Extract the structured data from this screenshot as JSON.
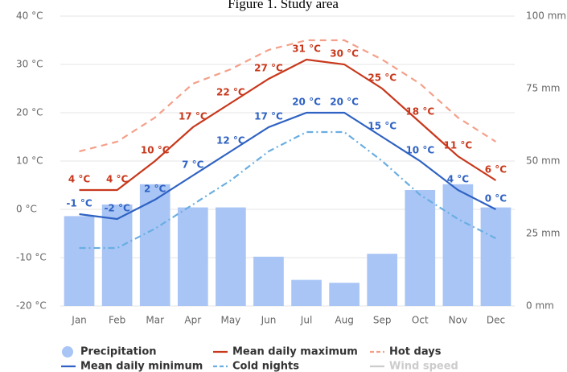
{
  "chart_data": {
    "type": "climate",
    "title": "Figure 1. Study area",
    "categories": [
      "Jan",
      "Feb",
      "Mar",
      "Apr",
      "May",
      "Jun",
      "Jul",
      "Aug",
      "Sep",
      "Oct",
      "Nov",
      "Dec"
    ],
    "ylim": [
      -20,
      40
    ],
    "yticks": [
      {
        "value": -20,
        "label": "-20 °C"
      },
      {
        "value": -10,
        "label": "-10 °C"
      },
      {
        "value": 0,
        "label": "0 °C"
      },
      {
        "value": 10,
        "label": "10 °C"
      },
      {
        "value": 20,
        "label": "20 °C"
      },
      {
        "value": 30,
        "label": "30 °C"
      },
      {
        "value": 40,
        "label": "40 °C"
      }
    ],
    "y2lim": [
      0,
      100
    ],
    "y2ticks": [
      {
        "value": 0,
        "label": "0 mm"
      },
      {
        "value": 25,
        "label": "25 mm"
      },
      {
        "value": 50,
        "label": "50 mm"
      },
      {
        "value": 75,
        "label": "75 mm"
      },
      {
        "value": 100,
        "label": "100 mm"
      }
    ],
    "grid": true,
    "series": [
      {
        "name": "Precipitation",
        "kind": "bar",
        "axis": "y2",
        "color": "#a8c5f5",
        "values": [
          31,
          35,
          42,
          34,
          34,
          17,
          9,
          8,
          18,
          40,
          42,
          34
        ]
      },
      {
        "name": "Mean daily maximum",
        "kind": "line",
        "color": "#c8381c",
        "values": [
          4,
          4,
          10,
          17,
          22,
          27,
          31,
          30,
          25,
          18,
          11,
          6
        ],
        "value_labels": [
          "4 °C",
          "4 °C",
          "10 °C",
          "17 °C",
          "22 °C",
          "27 °C",
          "31 °C",
          "30 °C",
          "25 °C",
          "18 °C",
          "11 °C",
          "6 °C"
        ]
      },
      {
        "name": "Hot days",
        "kind": "line",
        "dash": "8 6",
        "color": "#f4a08a",
        "values": [
          12,
          14,
          19,
          26,
          29,
          33,
          35,
          35,
          31,
          26,
          19,
          14
        ]
      },
      {
        "name": "Mean daily minimum",
        "kind": "line",
        "color": "#2f62c2",
        "values": [
          -1,
          -2,
          2,
          7,
          12,
          17,
          20,
          20,
          15,
          10,
          4,
          0
        ],
        "value_labels": [
          "-1 °C",
          "-2 °C",
          "2 °C",
          "7 °C",
          "12 °C",
          "17 °C",
          "20 °C",
          "20 °C",
          "15 °C",
          "10 °C",
          "4 °C",
          "0 °C"
        ]
      },
      {
        "name": "Cold nights",
        "kind": "line",
        "dash": "8 4 2 4",
        "color": "#6aaee2",
        "values": [
          -8,
          -8,
          -4,
          1,
          6,
          12,
          16,
          16,
          10,
          3,
          -2,
          -6
        ]
      },
      {
        "name": "Wind speed",
        "kind": "line",
        "color": "#cccccc",
        "values": [
          null,
          null,
          null,
          null,
          null,
          null,
          null,
          null,
          null,
          null,
          null,
          null
        ]
      }
    ]
  }
}
